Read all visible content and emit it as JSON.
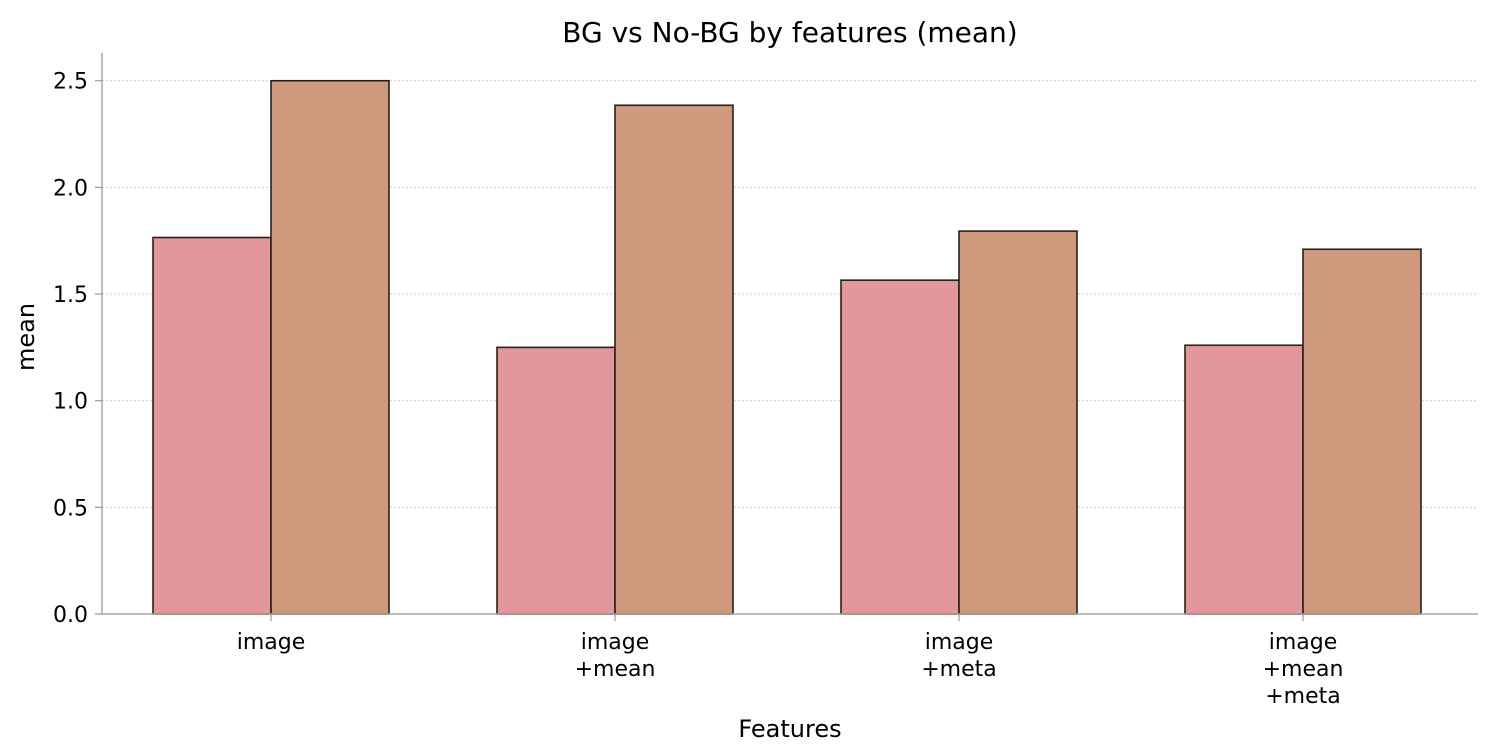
{
  "chart_data": {
    "type": "bar",
    "title": "BG vs No-BG by features (mean)",
    "xlabel": "Features",
    "ylabel": "mean",
    "categories": [
      [
        "image"
      ],
      [
        "image",
        "+mean"
      ],
      [
        "image",
        "+meta"
      ],
      [
        "image",
        "+mean",
        "+meta"
      ]
    ],
    "series": [
      {
        "values": [
          1.765,
          1.25,
          1.565,
          1.26
        ],
        "color": "#e3979a"
      },
      {
        "values": [
          2.5,
          2.385,
          1.795,
          1.71
        ],
        "color": "#cd9a7b"
      }
    ],
    "ylim": [
      0,
      2.63
    ],
    "yticks": [
      "0.0",
      "0.5",
      "1.0",
      "1.5",
      "2.0",
      "2.5"
    ],
    "grid": "y-dotted",
    "legend": "none"
  }
}
